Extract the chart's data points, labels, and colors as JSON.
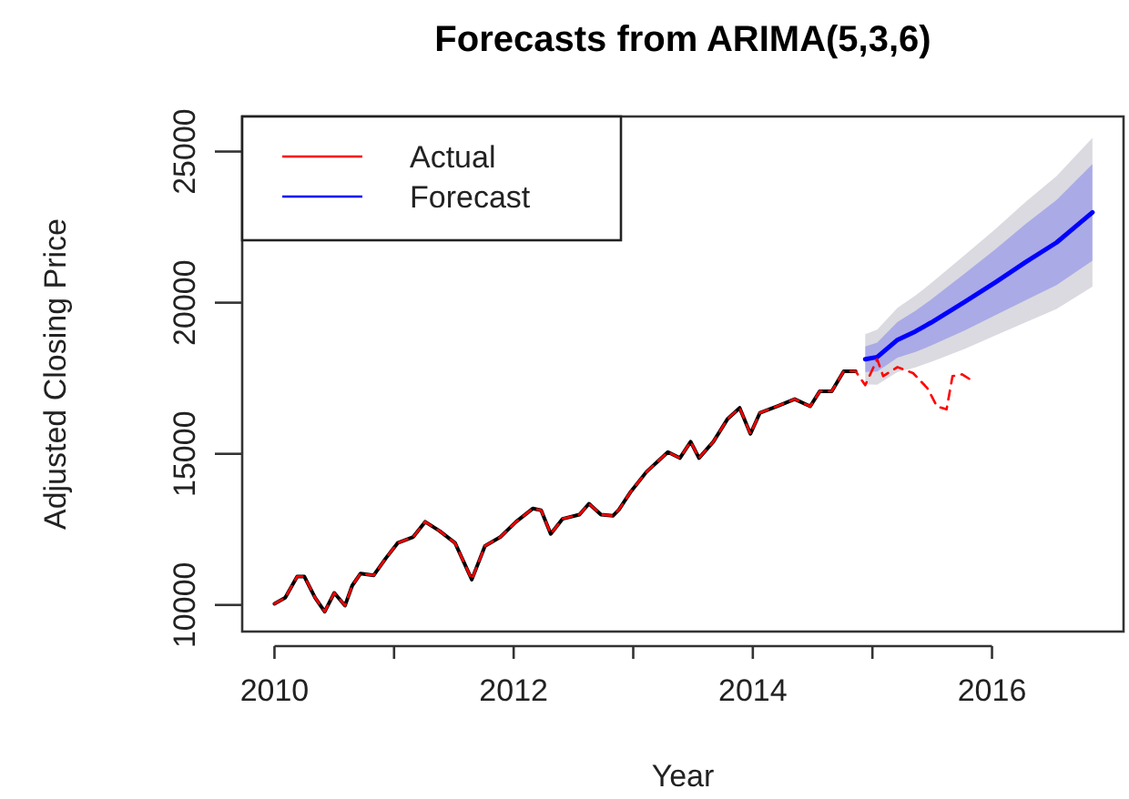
{
  "chart_data": {
    "type": "line",
    "title": "Forecasts from ARIMA(5,3,6)",
    "xlabel": "Year",
    "ylabel": "Adjusted Closing Price",
    "xlim": [
      2009.73,
      2017.1
    ],
    "ylim": [
      9120,
      26160
    ],
    "xticks": [
      2010,
      {
        "value": 2011,
        "label": null
      },
      2012,
      {
        "value": 2013,
        "label": null
      },
      2014,
      {
        "value": 2015,
        "label": null
      },
      2016
    ],
    "yticks": [
      10000,
      15000,
      20000,
      25000
    ],
    "grid": false,
    "legend": "top left",
    "marker": "none",
    "series": [
      {
        "color": "#dadae0",
        "x": [
          2014.94,
          2015.04,
          2015.21,
          2015.36,
          2015.49,
          2015.77,
          2016.03,
          2016.28,
          2016.54,
          2016.84
        ],
        "values": [
          null,
          null,
          null,
          null,
          null,
          null,
          null,
          null,
          null,
          null
        ],
        "lower": [
          17300,
          17290,
          17710,
          17860,
          18040,
          18470,
          18920,
          19350,
          19790,
          20530
        ],
        "upper": [
          18960,
          19110,
          19830,
          20240,
          20640,
          21570,
          22440,
          23330,
          24190,
          25450
        ]
      },
      {
        "name": "Forecast",
        "color": "#0000ff",
        "x": [
          2014.94,
          2015.04,
          2015.21,
          2015.36,
          2015.49,
          2015.77,
          2016.03,
          2016.28,
          2016.54,
          2016.84
        ],
        "values": [
          18130,
          18200,
          18770,
          19050,
          19340,
          20020,
          20680,
          21340,
          21990,
          22990
        ],
        "lower": [
          17710,
          17720,
          18180,
          18370,
          18580,
          19080,
          19590,
          20080,
          20580,
          21390
        ],
        "upper": [
          18550,
          18680,
          19360,
          19730,
          20100,
          20960,
          21770,
          22600,
          23400,
          24590
        ]
      },
      {
        "color": "#000000",
        "line_style": "solid",
        "x": [
          2010.0,
          2010.09,
          2010.19,
          2010.25,
          2010.34,
          2010.42,
          2010.5,
          2010.59,
          2010.65,
          2010.72,
          2010.83,
          2010.93,
          2011.03,
          2011.16,
          2011.26,
          2011.38,
          2011.51,
          2011.65,
          2011.76,
          2011.89,
          2012.02,
          2012.16,
          2012.23,
          2012.31,
          2012.41,
          2012.55,
          2012.63,
          2012.73,
          2012.83,
          2012.88,
          2012.98,
          2013.11,
          2013.29,
          2013.39,
          2013.48,
          2013.55,
          2013.67,
          2013.79,
          2013.89,
          2013.98,
          2014.06,
          2014.2,
          2014.35,
          2014.48,
          2014.56,
          2014.66,
          2014.76,
          2014.86
        ],
        "values": [
          10040,
          10240,
          10940,
          10940,
          10240,
          9780,
          10400,
          9980,
          10640,
          11040,
          10980,
          11540,
          12050,
          12250,
          12750,
          12450,
          12050,
          10840,
          11950,
          12250,
          12750,
          13190,
          13130,
          12350,
          12850,
          12990,
          13350,
          12990,
          12950,
          13150,
          13750,
          14400,
          15060,
          14860,
          15400,
          14860,
          15400,
          16160,
          16520,
          15660,
          16360,
          16570,
          16810,
          16570,
          17070,
          17070,
          17730,
          17730
        ]
      },
      {
        "name": "Actual",
        "color": "#ff0000",
        "line_style": "dashed",
        "x": [
          2010.0,
          2010.09,
          2010.19,
          2010.25,
          2010.34,
          2010.42,
          2010.5,
          2010.59,
          2010.65,
          2010.72,
          2010.83,
          2010.93,
          2011.03,
          2011.16,
          2011.26,
          2011.38,
          2011.51,
          2011.65,
          2011.76,
          2011.89,
          2012.02,
          2012.16,
          2012.23,
          2012.31,
          2012.41,
          2012.55,
          2012.63,
          2012.73,
          2012.83,
          2012.88,
          2012.98,
          2013.11,
          2013.29,
          2013.39,
          2013.48,
          2013.55,
          2013.67,
          2013.79,
          2013.89,
          2013.98,
          2014.06,
          2014.2,
          2014.35,
          2014.48,
          2014.56,
          2014.66,
          2014.76,
          2014.86,
          2014.94,
          2015.04,
          2015.09,
          2015.21,
          2015.34,
          2015.46,
          2015.54,
          2015.62,
          2015.67,
          2015.75,
          2015.83
        ],
        "values": [
          10040,
          10240,
          10940,
          10940,
          10240,
          9780,
          10400,
          9980,
          10640,
          11040,
          10980,
          11540,
          12050,
          12250,
          12750,
          12450,
          12050,
          10840,
          11950,
          12250,
          12750,
          13190,
          13130,
          12350,
          12850,
          12990,
          13350,
          12990,
          12950,
          13150,
          13750,
          14400,
          15060,
          14860,
          15400,
          14860,
          15400,
          16160,
          16520,
          15660,
          16360,
          16570,
          16810,
          16570,
          17070,
          17070,
          17730,
          17730,
          17270,
          18130,
          17570,
          17870,
          17670,
          17170,
          16570,
          16470,
          17570,
          17630,
          17430
        ]
      }
    ]
  }
}
